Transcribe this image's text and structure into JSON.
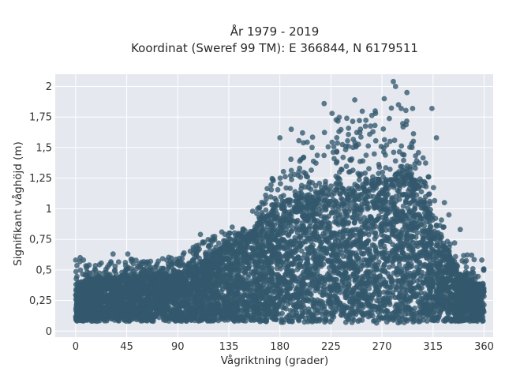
{
  "chart_data": {
    "type": "scatter",
    "title": "År 1979 - 2019",
    "subtitle": "Koordinat (Sweref 99 TM): E 366844, N 6179511",
    "xlabel": "Vågriktning (grader)",
    "ylabel": "Signifikant våghöjd (m)",
    "xlim": [
      -18,
      368
    ],
    "ylim": [
      -0.05,
      2.1
    ],
    "xticks": [
      0,
      45,
      90,
      135,
      180,
      225,
      270,
      315,
      360
    ],
    "xtick_labels": [
      "0",
      "45",
      "90",
      "135",
      "180",
      "225",
      "270",
      "315",
      "360"
    ],
    "yticks": [
      0,
      0.25,
      0.5,
      0.75,
      1,
      1.25,
      1.5,
      1.75,
      2
    ],
    "ytick_labels": [
      "0",
      "0,25",
      "0,5",
      "0,75",
      "1",
      "1,25",
      "1,5",
      "1,75",
      "2"
    ],
    "grid": true,
    "background": "#e5e8ef",
    "marker_color": "#33596d",
    "envelope": {
      "direction": [
        0,
        20,
        40,
        60,
        90,
        110,
        130,
        150,
        170,
        180,
        200,
        220,
        240,
        260,
        270,
        280,
        290,
        300,
        310,
        320,
        330,
        340,
        350,
        360
      ],
      "min_height": [
        0.08,
        0.08,
        0.08,
        0.08,
        0.08,
        0.08,
        0.08,
        0.08,
        0.07,
        0.07,
        0.07,
        0.07,
        0.07,
        0.07,
        0.06,
        0.06,
        0.06,
        0.07,
        0.08,
        0.08,
        0.08,
        0.08,
        0.08,
        0.08
      ],
      "dense_max": [
        0.38,
        0.42,
        0.44,
        0.45,
        0.47,
        0.55,
        0.68,
        0.75,
        0.95,
        1.05,
        1.1,
        1.15,
        1.18,
        1.22,
        1.25,
        1.28,
        1.28,
        1.2,
        1.0,
        0.78,
        0.6,
        0.45,
        0.4,
        0.38
      ],
      "scatter_max": [
        0.6,
        0.55,
        0.6,
        0.58,
        0.62,
        0.72,
        0.82,
        0.85,
        1.2,
        1.4,
        1.6,
        1.7,
        1.8,
        1.85,
        1.9,
        2.05,
        1.85,
        1.55,
        1.35,
        1.05,
        0.72,
        0.65,
        0.6,
        0.55
      ]
    },
    "outliers": [
      {
        "x": 280,
        "y": 2.04
      },
      {
        "x": 282,
        "y": 2.0
      },
      {
        "x": 292,
        "y": 1.95
      },
      {
        "x": 272,
        "y": 1.9
      },
      {
        "x": 246,
        "y": 1.89
      },
      {
        "x": 219,
        "y": 1.86
      },
      {
        "x": 297,
        "y": 1.82
      },
      {
        "x": 287,
        "y": 1.82
      },
      {
        "x": 314,
        "y": 1.82
      },
      {
        "x": 264,
        "y": 1.8
      },
      {
        "x": 226,
        "y": 1.78
      },
      {
        "x": 239,
        "y": 1.74
      },
      {
        "x": 190,
        "y": 1.65
      },
      {
        "x": 262,
        "y": 1.63
      },
      {
        "x": 180,
        "y": 1.58
      },
      {
        "x": 200,
        "y": 1.62
      },
      {
        "x": 251,
        "y": 1.65
      },
      {
        "x": 318,
        "y": 1.58
      },
      {
        "x": 168,
        "y": 1.08
      },
      {
        "x": 156,
        "y": 0.98
      },
      {
        "x": 138,
        "y": 0.85
      },
      {
        "x": 110,
        "y": 0.79
      },
      {
        "x": 46,
        "y": 0.63
      },
      {
        "x": 33,
        "y": 0.63
      },
      {
        "x": 4,
        "y": 0.6
      },
      {
        "x": 0,
        "y": 0.58
      },
      {
        "x": 66,
        "y": 0.57
      },
      {
        "x": 358,
        "y": 0.58
      },
      {
        "x": 349,
        "y": 0.62
      },
      {
        "x": 334,
        "y": 0.72
      },
      {
        "x": 339,
        "y": 0.83
      },
      {
        "x": 325,
        "y": 1.05
      },
      {
        "x": 329,
        "y": 0.95
      }
    ],
    "point_count_estimate": 7000
  }
}
